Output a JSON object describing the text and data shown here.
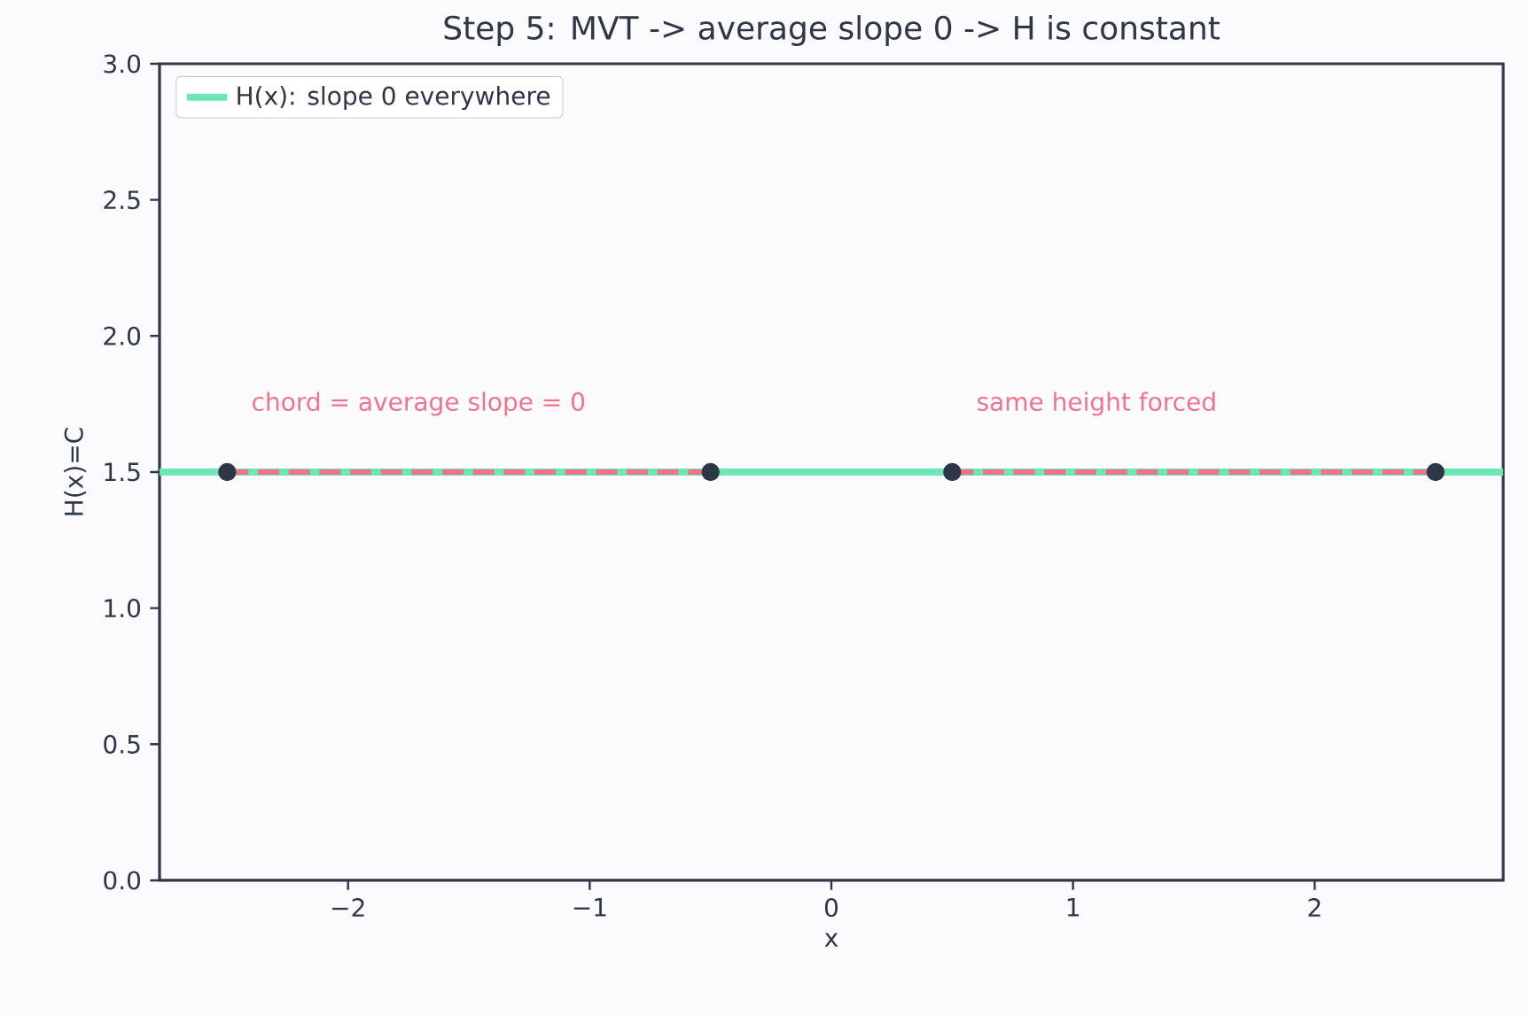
{
  "chart_data": {
    "type": "line",
    "title": "Step 5: MVT -> average slope 0 -> H is constant",
    "xlabel": "x",
    "ylabel": "H(x)=C",
    "xlim": [
      -2.78,
      2.78
    ],
    "ylim": [
      0,
      3
    ],
    "xticks": [
      {
        "value": -2,
        "label": "−2"
      },
      {
        "value": -1,
        "label": "−1"
      },
      0,
      1,
      2
    ],
    "yticks": [
      {
        "value": 0,
        "label": "0.0"
      },
      {
        "value": 0.5,
        "label": "0.5"
      },
      {
        "value": 1,
        "label": "1.0"
      },
      {
        "value": 1.5,
        "label": "1.5"
      },
      {
        "value": 2,
        "label": "2.0"
      },
      {
        "value": 2.5,
        "label": "2.5"
      },
      {
        "value": 3,
        "label": "3.0"
      }
    ],
    "grid": false,
    "legend": "top left",
    "series": [
      {
        "name": "H(x): slope 0 everywhere",
        "color": "#6ee7b7",
        "x": [
          -2.78,
          2.78
        ],
        "values": [
          1.5,
          1.5
        ],
        "line_style": "solid",
        "marker": "none"
      },
      {
        "color": "#f0738a",
        "x": [
          -2.5,
          -0.5
        ],
        "values": [
          1.5,
          1.5
        ],
        "line_style": "dashed",
        "marker": "none"
      },
      {
        "color": "#f0738a",
        "x": [
          0.5,
          2.5
        ],
        "values": [
          1.5,
          1.5
        ],
        "line_style": "dashed",
        "marker": "none"
      },
      {
        "type": "scatter",
        "color": "#2d3748",
        "x": [
          -2.5,
          -0.5,
          0.5,
          2.5
        ],
        "values": [
          1.5,
          1.5,
          1.5,
          1.5
        ],
        "marker": "circle"
      }
    ],
    "annotations": [
      "chord = average slope = 0",
      "same height forced"
    ]
  }
}
